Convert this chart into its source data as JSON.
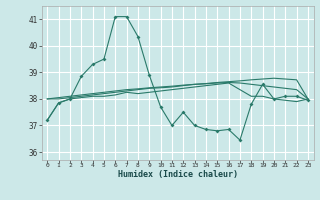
{
  "xlabel": "Humidex (Indice chaleur)",
  "background_color": "#cce8e8",
  "grid_color": "#ffffff",
  "line_color": "#2a7a6a",
  "xlim": [
    -0.5,
    23.5
  ],
  "ylim": [
    35.7,
    41.5
  ],
  "yticks": [
    36,
    37,
    38,
    39,
    40,
    41
  ],
  "xticks": [
    0,
    1,
    2,
    3,
    4,
    5,
    6,
    7,
    8,
    9,
    10,
    11,
    12,
    13,
    14,
    15,
    16,
    17,
    18,
    19,
    20,
    21,
    22,
    23
  ],
  "series1": [
    37.2,
    37.85,
    38.0,
    38.85,
    39.3,
    39.5,
    41.1,
    41.1,
    40.35,
    38.9,
    37.7,
    37.0,
    37.5,
    37.0,
    36.85,
    36.8,
    36.85,
    36.45,
    37.8,
    38.55,
    38.0,
    38.1,
    38.1,
    37.95
  ],
  "series2": [
    37.2,
    37.85,
    38.0,
    38.05,
    38.1,
    38.1,
    38.15,
    38.25,
    38.2,
    38.25,
    38.3,
    38.35,
    38.4,
    38.45,
    38.5,
    38.55,
    38.6,
    38.35,
    38.1,
    38.1,
    38.0,
    37.95,
    37.9,
    38.0
  ],
  "series3": [
    38.0,
    38.0,
    38.05,
    38.1,
    38.15,
    38.2,
    38.25,
    38.3,
    38.35,
    38.4,
    38.42,
    38.45,
    38.5,
    38.55,
    38.57,
    38.6,
    38.62,
    38.6,
    38.55,
    38.5,
    38.45,
    38.4,
    38.35,
    38.0
  ],
  "series4": [
    38.0,
    38.05,
    38.1,
    38.15,
    38.2,
    38.25,
    38.3,
    38.35,
    38.38,
    38.42,
    38.45,
    38.48,
    38.52,
    38.55,
    38.58,
    38.62,
    38.65,
    38.68,
    38.72,
    38.75,
    38.78,
    38.75,
    38.72,
    38.0
  ]
}
